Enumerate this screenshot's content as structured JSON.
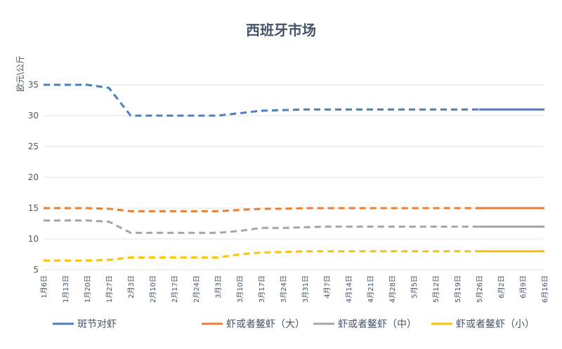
{
  "chart_data": {
    "type": "line",
    "title": "西班牙市场",
    "xlabel": "",
    "ylabel": "欧元\\公斤",
    "ylim": [
      5,
      35
    ],
    "yticks": [
      5,
      10,
      15,
      20,
      25,
      30,
      35
    ],
    "grid": true,
    "legend_position": "bottom",
    "categories": [
      "1月6日",
      "1月13日",
      "1月20日",
      "1月27日",
      "2月3日",
      "2月10日",
      "2月17日",
      "2月24日",
      "3月3日",
      "3月10日",
      "3月17日",
      "3月24日",
      "3月31日",
      "4月7日",
      "4月14日",
      "4月21日",
      "4月28日",
      "5月5日",
      "5月12日",
      "5月19日",
      "5月26日",
      "6月2日",
      "6月9日",
      "6月16日"
    ],
    "forecast_start": "5月26日",
    "series": [
      {
        "name": "斑节对虾",
        "color": "#4a7ebf",
        "values": [
          35,
          35,
          35,
          34.5,
          30,
          30,
          30,
          30,
          30,
          30.4,
          30.8,
          30.9,
          31,
          31,
          31,
          31,
          31,
          31,
          31,
          31,
          31,
          31,
          31,
          31
        ]
      },
      {
        "name": "虾或者鳌虾（大）",
        "color": "#ed7d31",
        "values": [
          15,
          15,
          15,
          14.9,
          14.5,
          14.5,
          14.5,
          14.5,
          14.5,
          14.7,
          14.9,
          14.9,
          15,
          15,
          15,
          15,
          15,
          15,
          15,
          15,
          15,
          15,
          15,
          15
        ]
      },
      {
        "name": "虾或者鳌虾（中）",
        "color": "#a5a5a5",
        "values": [
          13,
          13,
          13,
          12.8,
          11,
          11,
          11,
          11,
          11,
          11.3,
          11.8,
          11.8,
          11.9,
          12,
          12,
          12,
          12,
          12,
          12,
          12,
          12,
          12,
          12,
          12
        ]
      },
      {
        "name": "虾或者鳌虾（小）",
        "color": "#ffc000",
        "values": [
          6.5,
          6.5,
          6.5,
          6.6,
          7,
          7,
          7,
          7,
          7,
          7.5,
          7.8,
          7.9,
          8,
          8,
          8,
          8,
          8,
          8,
          8,
          8,
          8,
          8,
          8,
          8
        ]
      }
    ]
  }
}
